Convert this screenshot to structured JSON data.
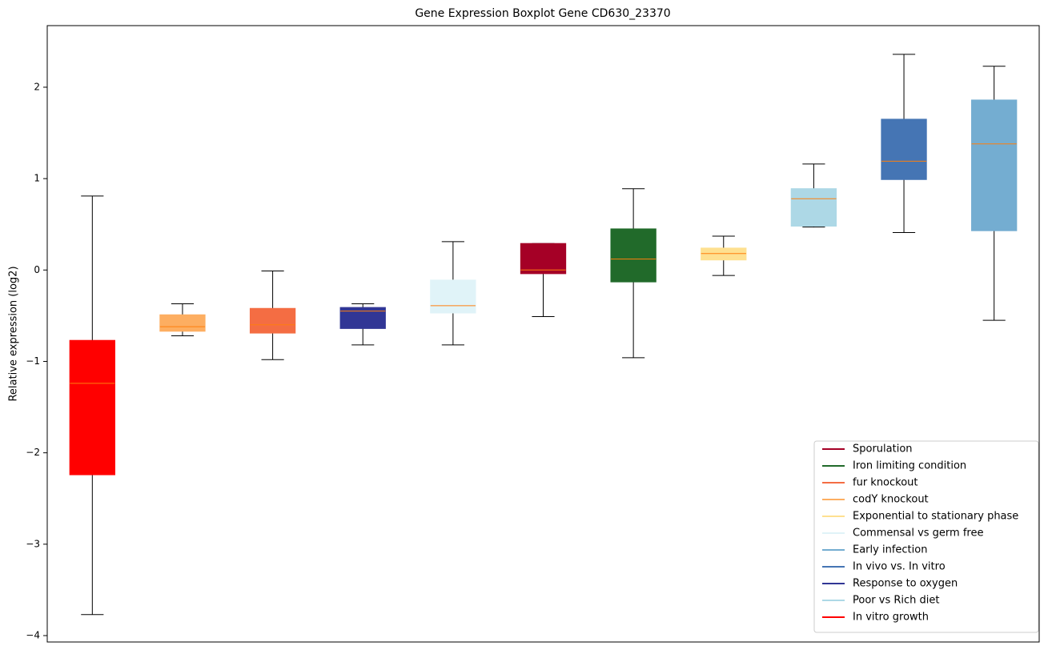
{
  "chart_data": {
    "type": "boxplot",
    "title": "Gene Expression Boxplot Gene CD630_23370",
    "y_label": "Relative expression (log2)",
    "ylim": [
      -4.07,
      2.674
    ],
    "yticks": [
      {
        "value": -4,
        "label": "−4"
      },
      {
        "value": -3,
        "label": "−3"
      },
      {
        "value": -2,
        "label": "−2"
      },
      {
        "value": -1,
        "label": "−1"
      },
      0,
      1,
      2
    ],
    "median_color": "#ff7f0e",
    "whisker_color": "#000000",
    "boxes": [
      {
        "color": "#ff0000",
        "low": -3.77,
        "q1": -2.24,
        "median": -1.24,
        "q3": -0.77,
        "high": 0.81
      },
      {
        "color": "#fdae61",
        "low": -0.72,
        "q1": -0.67,
        "median": -0.62,
        "q3": -0.49,
        "high": -0.37
      },
      {
        "color": "#f46d43",
        "low": -0.98,
        "q1": -0.69,
        "median": -0.6,
        "q3": -0.42,
        "high": -0.01
      },
      {
        "color": "#313695",
        "low": -0.82,
        "q1": -0.64,
        "median": -0.45,
        "q3": -0.41,
        "high": -0.37
      },
      {
        "color": "#e0f3f8",
        "low": -0.82,
        "q1": -0.47,
        "median": -0.39,
        "q3": -0.11,
        "high": 0.31
      },
      {
        "color": "#a50026",
        "low": -0.51,
        "q1": -0.04,
        "median": 0.0,
        "q3": 0.29,
        "high": 0.29
      },
      {
        "color": "#216a2a",
        "low": -0.96,
        "q1": -0.13,
        "median": 0.12,
        "q3": 0.45,
        "high": 0.89
      },
      {
        "color": "#fee090",
        "low": -0.06,
        "q1": 0.11,
        "median": 0.18,
        "q3": 0.24,
        "high": 0.37
      },
      {
        "color": "#add8e6",
        "low": 0.47,
        "q1": 0.48,
        "median": 0.78,
        "q3": 0.89,
        "high": 1.16
      },
      {
        "color": "#4575b4",
        "low": 0.41,
        "q1": 0.99,
        "median": 1.19,
        "q3": 1.65,
        "high": 2.36
      },
      {
        "color": "#74add1",
        "low": -0.55,
        "q1": 0.43,
        "median": 1.38,
        "q3": 1.86,
        "high": 2.23
      }
    ],
    "legend_position": "lower right",
    "legend": [
      {
        "name": "Sporulation",
        "color": "#a50026"
      },
      {
        "name": "Iron limiting condition",
        "color": "#216a2a"
      },
      {
        "name": "fur knockout",
        "color": "#f46d43"
      },
      {
        "name": "codY knockout",
        "color": "#fdae61"
      },
      {
        "name": "Exponential to stationary phase",
        "color": "#fee090"
      },
      {
        "name": "Commensal vs germ free",
        "color": "#e0f3f8"
      },
      {
        "name": "Early infection",
        "color": "#74add1"
      },
      {
        "name": "In vivo vs. In vitro",
        "color": "#4575b4"
      },
      {
        "name": "Response to oxygen",
        "color": "#313695"
      },
      {
        "name": "Poor vs Rich diet",
        "color": "#add8e6"
      },
      {
        "name": "In vitro growth",
        "color": "#ff0000"
      }
    ]
  }
}
